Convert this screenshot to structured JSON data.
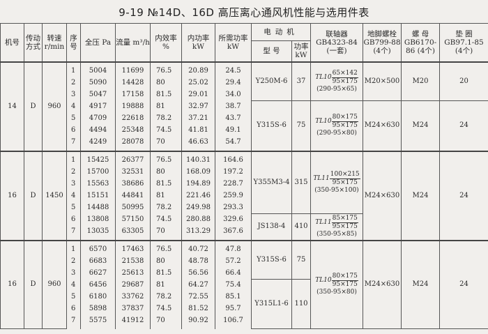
{
  "title": "9-19 №14D、16D 高压离心通风机性能与选用件表",
  "headers": {
    "machine_no": "机号",
    "drive": "传动方式",
    "speed": "转速 r/min",
    "seq": "序号",
    "total_pressure": "全压 Pa",
    "flow": "流量 m³/h",
    "efficiency": "内效率 %",
    "internal_power": "内功率 kW",
    "required_power": "所需功率 kW",
    "motor": "电动机",
    "motor_model": "型 号",
    "motor_power": "功率 kW",
    "coupling": "联轴器 GB4323-84 (一套)",
    "anchor_bolt": "地脚螺栓 GB799-88 (4个)",
    "nut": "螺 母 GB6170-86 (4个)",
    "washer": "垫 圈 GB97.1-85 (4个)"
  },
  "groups": [
    {
      "machine_no": "14",
      "drive": "D",
      "speed": "960",
      "rows": [
        [
          "1",
          "5004",
          "11699",
          "76.5",
          "20.89",
          "24.5"
        ],
        [
          "2",
          "5090",
          "14428",
          "80",
          "25.02",
          "29.4"
        ],
        [
          "3",
          "5047",
          "17158",
          "81.5",
          "29.01",
          "34.0"
        ],
        [
          "4",
          "4917",
          "19888",
          "81",
          "32.97",
          "38.7"
        ],
        [
          "5",
          "4709",
          "22618",
          "78.2",
          "37.21",
          "43.7"
        ],
        [
          "6",
          "4494",
          "25348",
          "74.5",
          "41.81",
          "49.1"
        ],
        [
          "7",
          "4249",
          "28078",
          "70",
          "46.63",
          "54.7"
        ]
      ],
      "motors": [
        {
          "span": 3,
          "model": "Y250M-6",
          "power": "37"
        },
        {
          "span": 4,
          "model": "Y315S-6",
          "power": "75"
        }
      ],
      "fittings": [
        {
          "span": 3,
          "coupling": {
            "type": "TL10",
            "num": "65×142",
            "den": "95×175",
            "spec": "(290-95×65)"
          },
          "bolt": "M20×500",
          "nut": "M20",
          "washer": "20"
        },
        {
          "span": 4,
          "coupling": {
            "type": "TL10",
            "num": "80×175",
            "den": "95×175",
            "spec": "(290-95×80)"
          },
          "bolt": "M24×630",
          "nut": "M24",
          "washer": "24"
        }
      ],
      "coupling_mode": "per_motor"
    },
    {
      "machine_no": "16",
      "drive": "D",
      "speed": "1450",
      "rows": [
        [
          "1",
          "15425",
          "26377",
          "76.5",
          "140.31",
          "164.6"
        ],
        [
          "2",
          "15700",
          "32531",
          "80",
          "168.09",
          "197.2"
        ],
        [
          "3",
          "15563",
          "38686",
          "81.5",
          "194.89",
          "228.7"
        ],
        [
          "4",
          "15151",
          "44841",
          "81",
          "221.46",
          "259.9"
        ],
        [
          "5",
          "14488",
          "50995",
          "78.2",
          "249.98",
          "293.3"
        ],
        [
          "6",
          "13808",
          "57150",
          "74.5",
          "280.88",
          "329.6"
        ],
        [
          "7",
          "13035",
          "63305",
          "70",
          "313.29",
          "367.6"
        ]
      ],
      "motors": [
        {
          "span": 5,
          "model": "Y355M3-4",
          "power": "315",
          "coupling": {
            "type": "TL11",
            "num": "100×215",
            "den": "95×175",
            "spec": "(350-95×100)"
          }
        },
        {
          "span": 2,
          "model": "JS138-4",
          "power": "410",
          "coupling": {
            "type": "TL11",
            "num": "85×175",
            "den": "95×175",
            "spec": "(350-95×85)"
          }
        }
      ],
      "fittings": [
        {
          "span": 7,
          "bolt": "M24×630",
          "nut": "M24",
          "washer": "24"
        }
      ],
      "coupling_mode": "per_motor_shared_bolts"
    },
    {
      "machine_no": "16",
      "drive": "D",
      "speed": "960",
      "rows": [
        [
          "1",
          "6570",
          "17463",
          "76.5",
          "40.72",
          "47.8"
        ],
        [
          "2",
          "6683",
          "21538",
          "80",
          "48.78",
          "57.2"
        ],
        [
          "3",
          "6627",
          "25613",
          "81.5",
          "56.56",
          "66.4"
        ],
        [
          "4",
          "6456",
          "29687",
          "81",
          "64.27",
          "75.4"
        ],
        [
          "5",
          "6180",
          "33762",
          "78.2",
          "72.55",
          "85.1"
        ],
        [
          "6",
          "5898",
          "37837",
          "74.5",
          "81.52",
          "95.7"
        ],
        [
          "7",
          "5575",
          "41912",
          "70",
          "90.92",
          "106.7"
        ]
      ],
      "motors": [
        {
          "span": 3,
          "model": "Y315S-6",
          "power": "75"
        },
        {
          "span": 4,
          "model": "Y315L1-6",
          "power": "110"
        }
      ],
      "fittings": [
        {
          "span": 7,
          "coupling": {
            "type": "TL10",
            "num": "80×175",
            "den": "95×175",
            "spec": "(350-95×80)"
          },
          "bolt": "M24×630",
          "nut": "M24",
          "washer": "24"
        }
      ],
      "coupling_mode": "shared"
    }
  ]
}
